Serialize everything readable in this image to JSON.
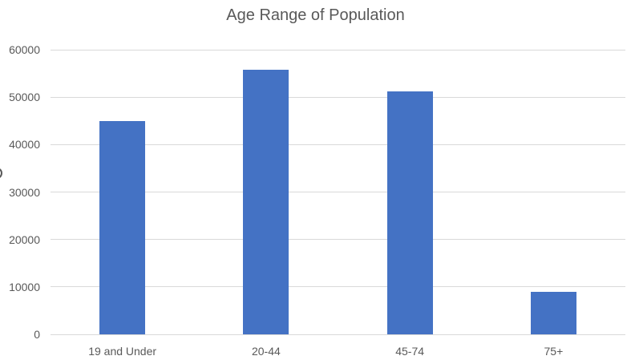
{
  "chart_data": {
    "type": "bar",
    "title": "Age Range of Population",
    "categories": [
      "19 and Under",
      "20-44",
      "45-74",
      "75+"
    ],
    "values": [
      45000,
      55800,
      51200,
      8900
    ],
    "xlabel": "",
    "ylabel": "",
    "ylim": [
      0,
      60000
    ],
    "yticks": [
      0,
      10000,
      20000,
      30000,
      40000,
      50000,
      60000
    ],
    "ytick_labels": [
      "0",
      "10000",
      "20000",
      "30000",
      "40000",
      "50000",
      "60000"
    ],
    "grid": true,
    "legend": false,
    "y_axis_title_fragment": "clipped glyph fragment visible at left edge",
    "colors": {
      "bar": "#4472C4",
      "gridline": "#D9D9D9",
      "axis_text": "#595959",
      "title_text": "#595959",
      "background": "#FFFFFF"
    }
  }
}
